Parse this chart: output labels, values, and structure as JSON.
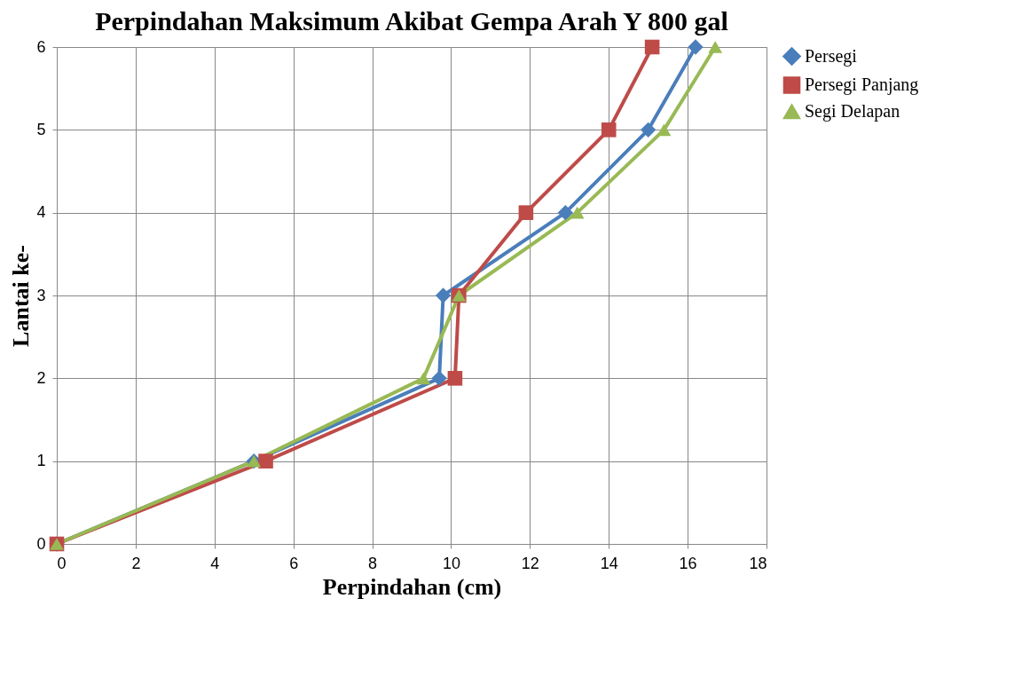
{
  "chart_data": {
    "type": "line",
    "title": "Perpindahan Maksimum Akibat Gempa Arah Y 800 gal",
    "xlabel": "Perpindahan (cm)",
    "ylabel": "Lantai ke-",
    "xlim": [
      0,
      18
    ],
    "xticks": [
      0,
      2,
      4,
      6,
      8,
      10,
      12,
      14,
      16,
      18
    ],
    "ylim": [
      0,
      6
    ],
    "yticks": [
      0,
      1,
      2,
      3,
      4,
      5,
      6
    ],
    "grid": true,
    "legend": "right",
    "line_style": "solid",
    "series": [
      {
        "name": "Persegi",
        "color": "#4a7ebb",
        "marker": "diamond",
        "x": [
          0,
          5,
          9.7,
          9.8,
          12.9,
          15,
          16.2
        ],
        "values": [
          0,
          1,
          2,
          3,
          4,
          5,
          6
        ]
      },
      {
        "name": "Persegi Panjang",
        "color": "#be4b48",
        "marker": "square",
        "x": [
          0,
          5.3,
          10.1,
          10.2,
          11.9,
          14,
          15.1
        ],
        "values": [
          0,
          1,
          2,
          3,
          4,
          5,
          6
        ]
      },
      {
        "name": "Segi Delapan",
        "color": "#98b954",
        "marker": "triangle",
        "x": [
          0,
          5,
          9.3,
          10.2,
          13.2,
          15.4,
          16.7
        ],
        "values": [
          0,
          1,
          2,
          3,
          4,
          5,
          6
        ]
      }
    ]
  }
}
